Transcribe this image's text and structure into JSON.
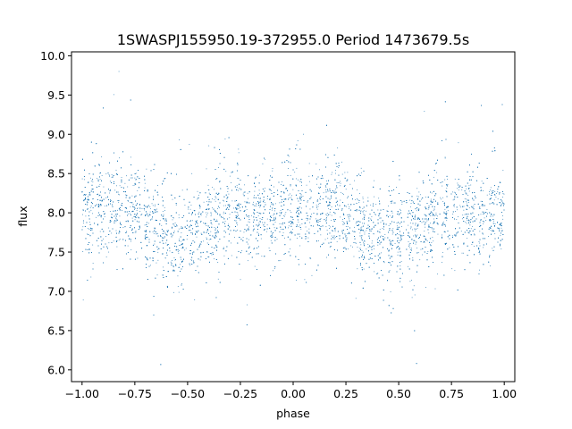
{
  "chart_data": {
    "type": "scatter",
    "title": "1SWASPJ155950.19-372955.0 Period 1473679.5s",
    "xlabel": "phase",
    "ylabel": "flux",
    "xlim": [
      -1.05,
      1.05
    ],
    "ylim": [
      5.85,
      10.05
    ],
    "x_ticks": [
      -1.0,
      -0.75,
      -0.5,
      -0.25,
      0.0,
      0.25,
      0.5,
      0.75,
      1.0
    ],
    "x_tick_labels": [
      "−1.00",
      "−0.75",
      "−0.50",
      "−0.25",
      "0.00",
      "0.25",
      "0.50",
      "0.75",
      "1.00"
    ],
    "y_ticks": [
      6.0,
      6.5,
      7.0,
      7.5,
      8.0,
      8.5,
      9.0,
      9.5,
      10.0
    ],
    "y_tick_labels": [
      "6.0",
      "6.5",
      "7.0",
      "7.5",
      "8.0",
      "8.5",
      "9.0",
      "9.5",
      "10.0"
    ],
    "grid": false,
    "legend": "none",
    "marker_color": "#1f77b4",
    "series": [
      {
        "phase_range": [
          -1.0,
          1.0
        ],
        "mean_flux_trend": [
          {
            "phase": -1.0,
            "flux": 8.05
          },
          {
            "phase": -0.9,
            "flux": 8.05
          },
          {
            "phase": -0.75,
            "flux": 8.0
          },
          {
            "phase": -0.65,
            "flux": 7.8
          },
          {
            "phase": -0.55,
            "flux": 7.7
          },
          {
            "phase": -0.45,
            "flux": 7.75
          },
          {
            "phase": -0.35,
            "flux": 7.95
          },
          {
            "phase": -0.2,
            "flux": 8.0
          },
          {
            "phase": -0.1,
            "flux": 7.95
          },
          {
            "phase": 0.0,
            "flux": 8.05
          },
          {
            "phase": 0.1,
            "flux": 8.05
          },
          {
            "phase": 0.25,
            "flux": 8.0
          },
          {
            "phase": 0.35,
            "flux": 7.8
          },
          {
            "phase": 0.45,
            "flux": 7.7
          },
          {
            "phase": 0.55,
            "flux": 7.75
          },
          {
            "phase": 0.65,
            "flux": 7.95
          },
          {
            "phase": 0.8,
            "flux": 8.0
          },
          {
            "phase": 0.9,
            "flux": 7.95
          },
          {
            "phase": 1.0,
            "flux": 8.05
          }
        ],
        "typical_scatter_range": [
          6.9,
          9.0
        ],
        "outlier_range": [
          6.0,
          9.8
        ]
      }
    ]
  }
}
